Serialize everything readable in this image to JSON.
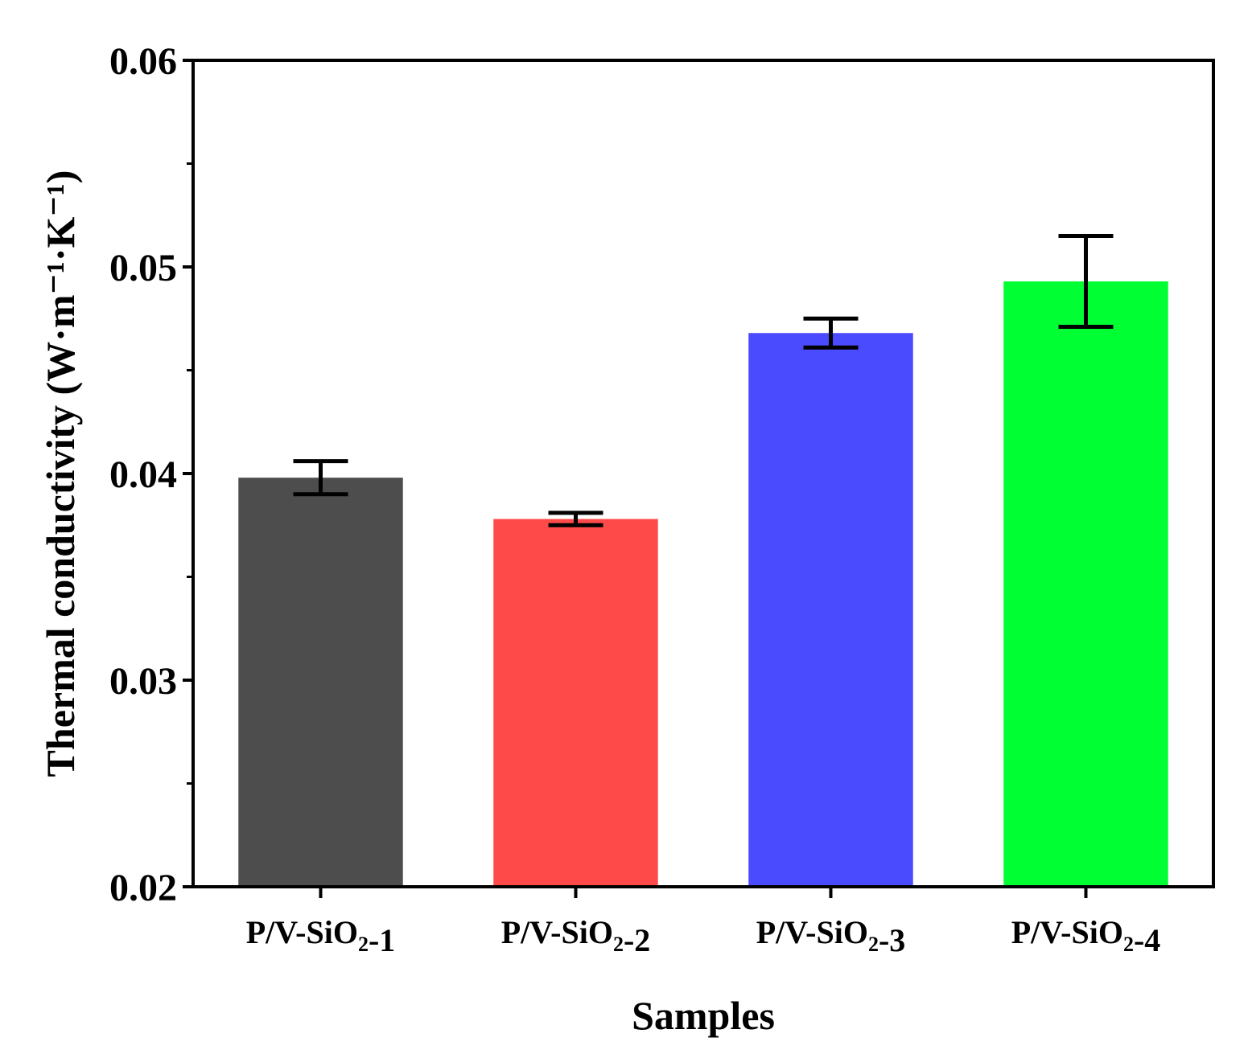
{
  "chart_data": {
    "type": "bar",
    "title": "",
    "xlabel": "Samples",
    "ylabel": "Thermal conductivity (W·m⁻¹·K⁻¹)",
    "ylim": [
      0.02,
      0.06
    ],
    "yticks": [
      "0.02",
      "0.03",
      "0.04",
      "0.05",
      "0.06"
    ],
    "grid": false,
    "categories": [
      "P/V-SiO₂-1",
      "P/V-SiO₂-2",
      "P/V-SiO₂-3",
      "P/V-SiO₂-4"
    ],
    "values": [
      0.0398,
      0.0378,
      0.0468,
      0.0493
    ],
    "errors": [
      0.0008,
      0.0003,
      0.0007,
      0.0022
    ],
    "colors": [
      "#4d4d4d",
      "#ff4a4a",
      "#4a4aff",
      "#00ff33"
    ]
  }
}
